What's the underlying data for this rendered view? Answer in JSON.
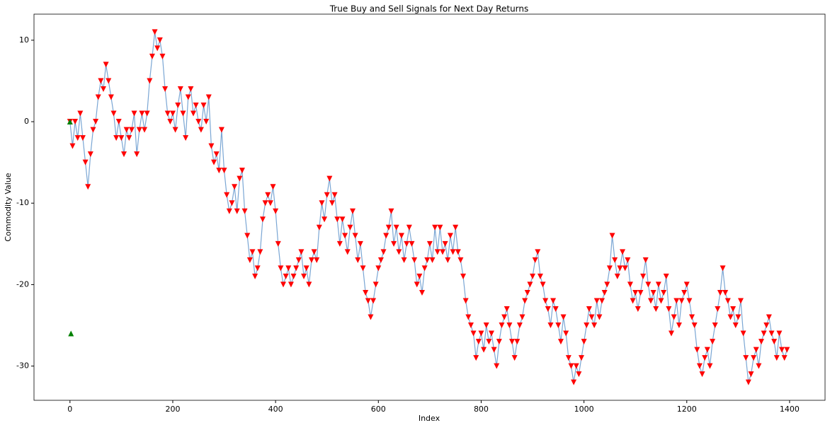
{
  "chart_data": {
    "type": "signal-line",
    "title": "True Buy and Sell Signals for Next Day Returns",
    "x_label": "Index",
    "y_label": "Commodity Value",
    "xlim": [
      -70,
      1469
    ],
    "ylim": [
      -34.2,
      13.2
    ],
    "xticks": [
      0,
      200,
      400,
      600,
      800,
      1000,
      1200,
      1400
    ],
    "yticks": [
      -30,
      -20,
      -10,
      0,
      10
    ],
    "grid": false,
    "line_color": "#7aa6d4",
    "sell_color": "#ff0000",
    "buy_color": "#008000",
    "x": [
      0,
      5,
      10,
      15,
      20,
      25,
      30,
      35,
      40,
      45,
      50,
      55,
      60,
      65,
      70,
      75,
      80,
      85,
      90,
      95,
      100,
      105,
      110,
      115,
      120,
      125,
      130,
      135,
      140,
      145,
      150,
      155,
      160,
      165,
      170,
      175,
      180,
      185,
      190,
      195,
      200,
      205,
      210,
      215,
      220,
      225,
      230,
      235,
      240,
      245,
      250,
      255,
      260,
      265,
      270,
      275,
      280,
      285,
      290,
      295,
      300,
      305,
      310,
      315,
      320,
      325,
      330,
      335,
      340,
      345,
      350,
      355,
      360,
      365,
      370,
      375,
      380,
      385,
      390,
      395,
      400,
      405,
      410,
      415,
      420,
      425,
      430,
      435,
      440,
      445,
      450,
      455,
      460,
      465,
      470,
      475,
      480,
      485,
      490,
      495,
      500,
      505,
      510,
      515,
      520,
      525,
      530,
      535,
      540,
      545,
      550,
      555,
      560,
      565,
      570,
      575,
      580,
      585,
      590,
      595,
      600,
      605,
      610,
      615,
      620,
      625,
      630,
      635,
      640,
      645,
      650,
      655,
      660,
      665,
      670,
      675,
      680,
      685,
      690,
      695,
      700,
      705,
      710,
      715,
      720,
      725,
      730,
      735,
      740,
      745,
      750,
      755,
      760,
      765,
      770,
      775,
      780,
      785,
      790,
      795,
      800,
      805,
      810,
      815,
      820,
      825,
      830,
      835,
      840,
      845,
      850,
      855,
      860,
      865,
      870,
      875,
      880,
      885,
      890,
      895,
      900,
      905,
      910,
      915,
      920,
      925,
      930,
      935,
      940,
      945,
      950,
      955,
      960,
      965,
      970,
      975,
      980,
      985,
      990,
      995,
      1000,
      1005,
      1010,
      1015,
      1020,
      1025,
      1030,
      1035,
      1040,
      1045,
      1050,
      1055,
      1060,
      1065,
      1070,
      1075,
      1080,
      1085,
      1090,
      1095,
      1100,
      1105,
      1110,
      1115,
      1120,
      1125,
      1130,
      1135,
      1140,
      1145,
      1150,
      1155,
      1160,
      1165,
      1170,
      1175,
      1180,
      1185,
      1190,
      1195,
      1200,
      1205,
      1210,
      1215,
      1220,
      1225,
      1230,
      1235,
      1240,
      1245,
      1250,
      1255,
      1260,
      1265,
      1270,
      1275,
      1280,
      1285,
      1290,
      1295,
      1300,
      1305,
      1310,
      1315,
      1320,
      1325,
      1330,
      1335,
      1340,
      1345,
      1350,
      1355,
      1360,
      1365,
      1370,
      1375,
      1380,
      1385,
      1390,
      1395
    ],
    "values": [
      0,
      -3,
      0,
      -2,
      1,
      -2,
      -5,
      -8,
      -4,
      -1,
      0,
      3,
      5,
      4,
      7,
      5,
      3,
      1,
      -2,
      0,
      -2,
      -4,
      -1,
      -2,
      -1,
      1,
      -4,
      -1,
      1,
      -1,
      1,
      5,
      8,
      11,
      9,
      10,
      8,
      4,
      1,
      0,
      1,
      -1,
      2,
      4,
      1,
      -2,
      3,
      4,
      1,
      2,
      0,
      -1,
      2,
      0,
      3,
      -3,
      -5,
      -4,
      -6,
      -1,
      -6,
      -9,
      -11,
      -10,
      -8,
      -11,
      -7,
      -6,
      -11,
      -14,
      -17,
      -16,
      -19,
      -18,
      -16,
      -12,
      -10,
      -9,
      -10,
      -8,
      -11,
      -15,
      -18,
      -20,
      -19,
      -18,
      -20,
      -19,
      -18,
      -17,
      -16,
      -19,
      -18,
      -20,
      -17,
      -16,
      -17,
      -13,
      -10,
      -12,
      -9,
      -7,
      -10,
      -9,
      -12,
      -15,
      -12,
      -14,
      -16,
      -13,
      -11,
      -14,
      -17,
      -15,
      -18,
      -21,
      -22,
      -24,
      -22,
      -20,
      -18,
      -17,
      -16,
      -14,
      -13,
      -11,
      -15,
      -13,
      -16,
      -14,
      -17,
      -15,
      -13,
      -15,
      -17,
      -20,
      -19,
      -21,
      -18,
      -17,
      -15,
      -17,
      -13,
      -16,
      -13,
      -16,
      -15,
      -17,
      -14,
      -16,
      -13,
      -16,
      -17,
      -19,
      -22,
      -24,
      -25,
      -26,
      -29,
      -27,
      -26,
      -28,
      -25,
      -27,
      -26,
      -28,
      -30,
      -27,
      -25,
      -24,
      -23,
      -25,
      -27,
      -29,
      -27,
      -25,
      -24,
      -22,
      -21,
      -20,
      -19,
      -17,
      -16,
      -19,
      -20,
      -22,
      -23,
      -25,
      -22,
      -23,
      -25,
      -27,
      -24,
      -26,
      -29,
      -30,
      -32,
      -30,
      -31,
      -29,
      -27,
      -25,
      -23,
      -24,
      -25,
      -22,
      -24,
      -22,
      -21,
      -20,
      -18,
      -14,
      -17,
      -19,
      -18,
      -16,
      -18,
      -17,
      -20,
      -22,
      -21,
      -23,
      -21,
      -19,
      -17,
      -20,
      -22,
      -21,
      -23,
      -20,
      -22,
      -21,
      -19,
      -23,
      -26,
      -24,
      -22,
      -25,
      -22,
      -21,
      -20,
      -22,
      -24,
      -25,
      -28,
      -30,
      -31,
      -29,
      -28,
      -30,
      -27,
      -25,
      -23,
      -21,
      -18,
      -21,
      -22,
      -24,
      -23,
      -25,
      -24,
      -22,
      -26,
      -29,
      -32,
      -31,
      -29,
      -28,
      -30,
      -27,
      -26,
      -25,
      -24,
      -26,
      -27,
      -29,
      -26,
      -28,
      -29,
      -28
    ],
    "buy_x": [
      0,
      2
    ],
    "buy_values": [
      0,
      -26
    ]
  }
}
